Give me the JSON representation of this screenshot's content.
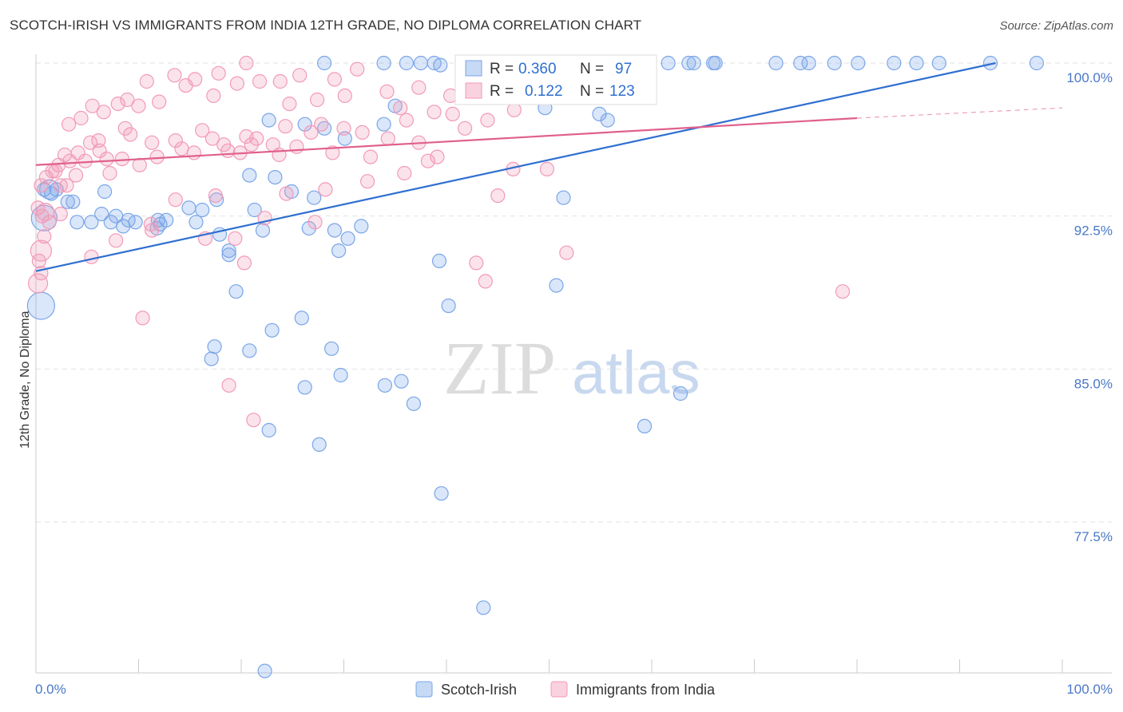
{
  "chart_data": {
    "type": "scatter",
    "title": "SCOTCH-IRISH VS IMMIGRANTS FROM INDIA 12TH GRADE, NO DIPLOMA CORRELATION CHART",
    "source": "Source: ZipAtlas.com",
    "watermark": {
      "zip": "ZIP",
      "atlas": "atlas"
    },
    "ylabel": "12th Grade, No Diploma",
    "xlim": [
      0,
      100
    ],
    "ylim": [
      70,
      101.5
    ],
    "x_tick_labels": [
      "0.0%",
      "100.0%"
    ],
    "y_ticks": [
      {
        "value": 100,
        "label": "100.0%"
      },
      {
        "value": 92.5,
        "label": "92.5%"
      },
      {
        "value": 85,
        "label": "85.0%"
      },
      {
        "value": 77.5,
        "label": "77.5%"
      }
    ],
    "legend": [
      {
        "r_label": "R =",
        "r": "0.360",
        "n_label": "N =",
        "n": "97"
      },
      {
        "r_label": "R =",
        "r": "0.122",
        "n_label": "N =",
        "n": "123"
      }
    ],
    "series": [
      {
        "name": "Scotch-Irish",
        "color": "#7aa6e8",
        "line_color": "#2f6fd0",
        "trend": {
          "x0": 0,
          "y0": 89.8,
          "x1": 93.5,
          "y1": 100.0
        },
        "points": [
          [
            20.8,
            94.5
          ],
          [
            52.7,
            100
          ],
          [
            64.1,
            100
          ],
          [
            66.2,
            100
          ],
          [
            2.0,
            93.8
          ],
          [
            1.5,
            93.6
          ],
          [
            0.8,
            93.8
          ],
          [
            3.1,
            93.2
          ],
          [
            4.0,
            92.2
          ],
          [
            3.6,
            93.2
          ],
          [
            6.7,
            93.7
          ],
          [
            5.4,
            92.2
          ],
          [
            6.4,
            92.6
          ],
          [
            7.3,
            92.2
          ],
          [
            7.8,
            92.5
          ],
          [
            9.7,
            92.2
          ],
          [
            9.0,
            92.3
          ],
          [
            8.5,
            92.0
          ],
          [
            12.1,
            92.1
          ],
          [
            11.9,
            92.3
          ],
          [
            16.2,
            92.8
          ],
          [
            14.9,
            92.9
          ],
          [
            17.6,
            93.3
          ],
          [
            15.6,
            92.2
          ],
          [
            11.8,
            91.9
          ],
          [
            12.7,
            92.3
          ],
          [
            17.9,
            91.6
          ],
          [
            22.1,
            91.8
          ],
          [
            21.3,
            92.8
          ],
          [
            18.8,
            90.8
          ],
          [
            24.9,
            93.7
          ],
          [
            18.8,
            90.6
          ],
          [
            30.4,
            91.4
          ],
          [
            27.1,
            93.4
          ],
          [
            31.7,
            92.0
          ],
          [
            26.6,
            91.9
          ],
          [
            29.5,
            90.8
          ],
          [
            19.5,
            88.8
          ],
          [
            29.1,
            91.8
          ],
          [
            23.0,
            86.9
          ],
          [
            20.8,
            85.9
          ],
          [
            17.1,
            85.5
          ],
          [
            17.4,
            86.1
          ],
          [
            26.2,
            84.1
          ],
          [
            25.9,
            87.5
          ],
          [
            28.8,
            86.0
          ],
          [
            29.7,
            84.7
          ],
          [
            35.6,
            84.4
          ],
          [
            34.0,
            84.2
          ],
          [
            39.3,
            90.3
          ],
          [
            40.2,
            88.1
          ],
          [
            22.7,
            82.0
          ],
          [
            27.6,
            81.3
          ],
          [
            36.8,
            83.3
          ],
          [
            39.5,
            78.9
          ],
          [
            43.6,
            73.3
          ],
          [
            51.4,
            93.4
          ],
          [
            50.7,
            89.1
          ],
          [
            62.8,
            83.8
          ],
          [
            59.3,
            82.2
          ],
          [
            22.3,
            70.2
          ],
          [
            26.2,
            97.0
          ],
          [
            22.7,
            97.2
          ],
          [
            28.1,
            96.8
          ],
          [
            30.1,
            96.3
          ],
          [
            23.3,
            94.4
          ],
          [
            35.0,
            97.9
          ],
          [
            33.9,
            97.0
          ],
          [
            39.4,
            99.9
          ],
          [
            37.5,
            100
          ],
          [
            33.9,
            100
          ],
          [
            28.1,
            100
          ],
          [
            36.1,
            100
          ],
          [
            38.8,
            100
          ],
          [
            45.5,
            99.4
          ],
          [
            49.6,
            97.8
          ],
          [
            54.9,
            97.5
          ],
          [
            55.7,
            97.2
          ],
          [
            56.8,
            100
          ],
          [
            61.6,
            100
          ],
          [
            63.6,
            100
          ],
          [
            66.0,
            100
          ],
          [
            72.1,
            100
          ],
          [
            74.5,
            100
          ],
          [
            75.3,
            100
          ],
          [
            77.8,
            100
          ],
          [
            80.1,
            100
          ],
          [
            83.6,
            100
          ],
          [
            88.0,
            100
          ],
          [
            93.0,
            100
          ],
          [
            97.5,
            100
          ],
          [
            85.8,
            100
          ],
          [
            45.8,
            100
          ],
          [
            49.2,
            100
          ],
          [
            43.0,
            100
          ],
          [
            46.0,
            100
          ],
          [
            42.3,
            100
          ]
        ]
      },
      {
        "name": "Immigrants from India",
        "color": "#f29ab8",
        "line_color": "#e0608e",
        "trend": {
          "x0": 0,
          "y0": 95.0,
          "x1": 80,
          "y1": 97.3
        },
        "trend_dashed_to": {
          "x1": 100,
          "y1": 97.8
        },
        "points": [
          [
            1.0,
            94.4
          ],
          [
            1.9,
            94.7
          ],
          [
            3.0,
            94.0
          ],
          [
            3.9,
            94.5
          ],
          [
            2.4,
            94.0
          ],
          [
            5.3,
            96.1
          ],
          [
            6.2,
            95.7
          ],
          [
            7.2,
            94.6
          ],
          [
            6.9,
            95.3
          ],
          [
            4.8,
            95.2
          ],
          [
            4.1,
            95.6
          ],
          [
            8.4,
            95.3
          ],
          [
            9.2,
            96.5
          ],
          [
            10.1,
            95.0
          ],
          [
            11.3,
            96.1
          ],
          [
            11.8,
            95.4
          ],
          [
            13.6,
            96.2
          ],
          [
            14.2,
            95.8
          ],
          [
            16.2,
            96.7
          ],
          [
            15.4,
            95.6
          ],
          [
            17.2,
            96.3
          ],
          [
            18.3,
            96.0
          ],
          [
            18.7,
            95.7
          ],
          [
            19.9,
            95.6
          ],
          [
            20.5,
            96.4
          ],
          [
            21.0,
            96.0
          ],
          [
            23.1,
            96.0
          ],
          [
            23.7,
            95.5
          ],
          [
            24.3,
            96.9
          ],
          [
            25.4,
            95.9
          ],
          [
            26.8,
            96.6
          ],
          [
            27.8,
            97.0
          ],
          [
            28.9,
            95.6
          ],
          [
            30.0,
            96.8
          ],
          [
            31.8,
            96.6
          ],
          [
            32.6,
            95.4
          ],
          [
            34.3,
            96.3
          ],
          [
            35.5,
            97.8
          ],
          [
            36.1,
            97.2
          ],
          [
            37.3,
            96.1
          ],
          [
            38.8,
            97.6
          ],
          [
            40.6,
            97.5
          ],
          [
            41.8,
            96.8
          ],
          [
            42.8,
            98.7
          ],
          [
            44.0,
            97.2
          ],
          [
            45.1,
            99.0
          ],
          [
            46.6,
            97.7
          ],
          [
            47.8,
            98.8
          ],
          [
            48.8,
            99.1
          ],
          [
            50.1,
            98.3
          ],
          [
            51.4,
            100
          ],
          [
            50.9,
            99.6
          ],
          [
            46.9,
            100
          ],
          [
            43.5,
            99.0
          ],
          [
            40.4,
            98.4
          ],
          [
            37.3,
            98.8
          ],
          [
            34.2,
            98.6
          ],
          [
            31.3,
            99.7
          ],
          [
            30.1,
            98.4
          ],
          [
            29.1,
            99.2
          ],
          [
            27.4,
            98.2
          ],
          [
            25.7,
            99.4
          ],
          [
            24.7,
            98.0
          ],
          [
            23.8,
            99.1
          ],
          [
            21.8,
            99.1
          ],
          [
            20.5,
            100
          ],
          [
            19.6,
            99.0
          ],
          [
            17.8,
            99.5
          ],
          [
            17.3,
            98.4
          ],
          [
            15.5,
            99.2
          ],
          [
            14.6,
            98.9
          ],
          [
            13.5,
            99.4
          ],
          [
            12.0,
            98.1
          ],
          [
            10.8,
            99.1
          ],
          [
            10.0,
            97.9
          ],
          [
            8.9,
            98.2
          ],
          [
            8.0,
            98.0
          ],
          [
            6.6,
            97.6
          ],
          [
            5.5,
            97.9
          ],
          [
            4.4,
            97.3
          ],
          [
            3.2,
            97.0
          ],
          [
            2.8,
            95.5
          ],
          [
            2.2,
            95.0
          ],
          [
            1.6,
            94.7
          ],
          [
            0.5,
            94.0
          ],
          [
            0.2,
            92.9
          ],
          [
            0.6,
            92.5
          ],
          [
            0.8,
            91.5
          ],
          [
            0.3,
            90.3
          ],
          [
            0.5,
            89.7
          ],
          [
            1.3,
            92.2
          ],
          [
            2.4,
            92.6
          ],
          [
            5.4,
            90.5
          ],
          [
            7.8,
            91.3
          ],
          [
            11.3,
            91.8
          ],
          [
            11.2,
            92.1
          ],
          [
            13.6,
            93.3
          ],
          [
            16.5,
            91.4
          ],
          [
            17.5,
            93.5
          ],
          [
            19.4,
            91.4
          ],
          [
            20.3,
            90.2
          ],
          [
            22.3,
            92.4
          ],
          [
            24.4,
            93.6
          ],
          [
            27.2,
            92.2
          ],
          [
            28.2,
            93.8
          ],
          [
            32.3,
            94.2
          ],
          [
            35.9,
            94.6
          ],
          [
            38.2,
            95.2
          ],
          [
            39.1,
            95.4
          ],
          [
            45.0,
            93.5
          ],
          [
            46.5,
            94.8
          ],
          [
            49.8,
            94.8
          ],
          [
            51.7,
            90.7
          ],
          [
            42.9,
            90.2
          ],
          [
            43.8,
            89.3
          ],
          [
            78.6,
            88.8
          ],
          [
            10.4,
            87.5
          ],
          [
            18.8,
            84.2
          ],
          [
            21.2,
            82.5
          ],
          [
            8.7,
            96.8
          ],
          [
            6.1,
            96.2
          ],
          [
            3.3,
            95.2
          ],
          [
            21.5,
            96.3
          ]
        ]
      }
    ]
  },
  "legend_bottom": [
    {
      "label": "Scotch-Irish"
    },
    {
      "label": "Immigrants from India"
    }
  ]
}
